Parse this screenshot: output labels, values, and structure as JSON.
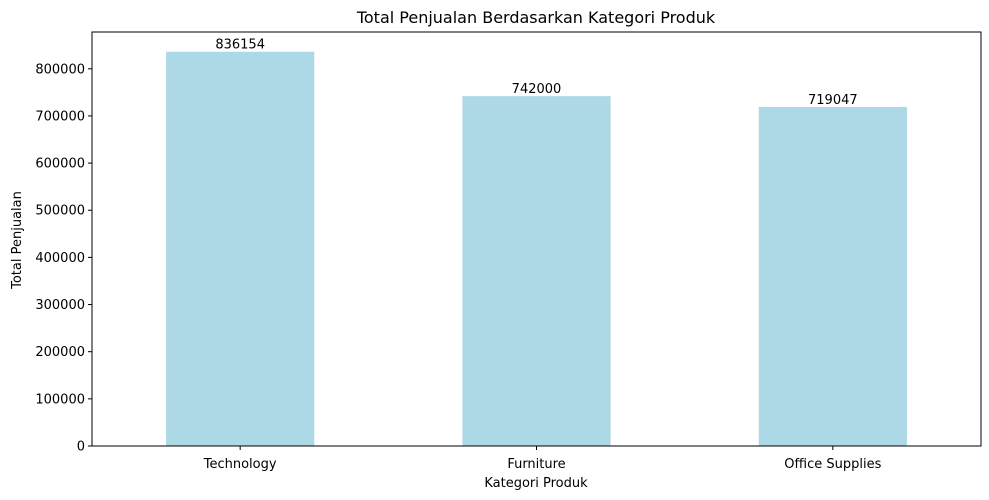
{
  "chart_data": {
    "type": "bar",
    "title": "Total Penjualan Berdasarkan Kategori Produk",
    "xlabel": "Kategori Produk",
    "ylabel": "Total Penjualan",
    "categories": [
      "Technology",
      "Furniture",
      "Office Supplies"
    ],
    "values": [
      836154,
      742000,
      719047
    ],
    "data_labels": [
      "836154",
      "742000",
      "719047"
    ],
    "ylim": [
      0,
      878000
    ],
    "yticks": [
      0,
      100000,
      200000,
      300000,
      400000,
      500000,
      600000,
      700000,
      800000
    ],
    "ytick_labels": [
      "0",
      "100000",
      "200000",
      "300000",
      "400000",
      "500000",
      "600000",
      "700000",
      "800000"
    ],
    "bar_color": "#add8e6",
    "grid": false,
    "legend": "none"
  }
}
